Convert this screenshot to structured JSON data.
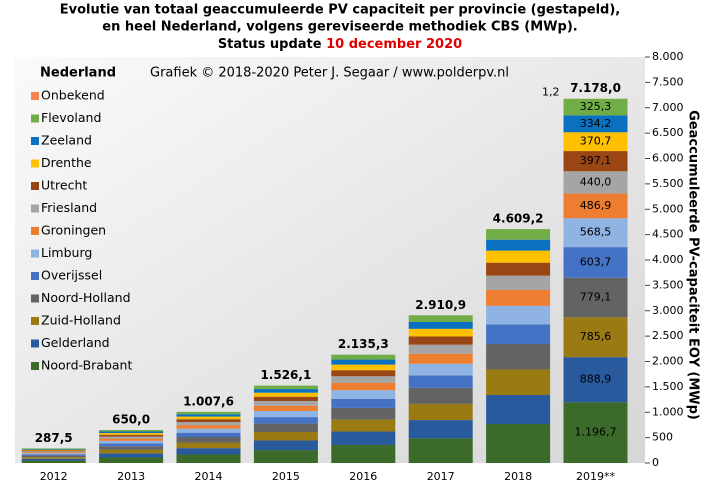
{
  "chart_data": {
    "type": "stacked-bar",
    "title": [
      "Evolutie van totaal geaccumuleerde PV capaciteit per provincie (gestapeld),",
      "en heel Nederland, volgens gereviseerde methodiek CBS (MWp)."
    ],
    "status": "Status update",
    "status_date": "10 december 2020",
    "subtitle": "Grafiek © 2018-2020 Peter J. Segaar / www.polderpv.nl",
    "legend_title": "Nederland",
    "y_label": "Geaccumuleerde PV-capaciteit EOY (MWp)",
    "categories": [
      "2012",
      "2013",
      "2014",
      "2015",
      "2016",
      "2017",
      "2018",
      "2019**"
    ],
    "ylim": [
      0,
      8000
    ],
    "yticks": [
      0,
      500,
      {
        "value": 1000,
        "label": "1.000"
      },
      {
        "value": 1500,
        "label": "1.500"
      },
      {
        "value": 2000,
        "label": "2.000"
      },
      {
        "value": 2500,
        "label": "2.500"
      },
      {
        "value": 3000,
        "label": "3.000"
      },
      {
        "value": 3500,
        "label": "3.500"
      },
      {
        "value": 4000,
        "label": "4.000"
      },
      {
        "value": 4500,
        "label": "4.500"
      },
      {
        "value": 5000,
        "label": "5.000"
      },
      {
        "value": 5500,
        "label": "5.500"
      },
      {
        "value": 6000,
        "label": "6.000"
      },
      {
        "value": 6500,
        "label": "6.500"
      },
      {
        "value": 7000,
        "label": "7.000"
      },
      {
        "value": 7500,
        "label": "7.500"
      },
      {
        "value": 8000,
        "label": "8.000"
      }
    ],
    "totals": [
      287.5,
      650.0,
      1007.6,
      1526.1,
      2135.3,
      2910.9,
      4609.2,
      7178.0
    ],
    "total_labels": [
      "287,5",
      "650,0",
      "1.007,6",
      "1.526,1",
      "2.135,3",
      "2.910,9",
      "4.609,2",
      "7.178,0"
    ],
    "series": [
      {
        "name": "Noord-Brabant",
        "color": "#3b6a2a",
        "values": [
          48.0,
          108.4,
          168.0,
          254.4,
          356.0,
          485.4,
          768.5,
          1196.7
        ],
        "value_labels": [
          null,
          null,
          null,
          null,
          null,
          null,
          null,
          "1.196,7"
        ]
      },
      {
        "name": "Gelderland",
        "color": "#2a5a9e",
        "values": [
          35.6,
          80.5,
          124.8,
          189.0,
          264.4,
          360.5,
          570.9,
          888.9
        ],
        "value_labels": [
          null,
          null,
          null,
          null,
          null,
          null,
          null,
          "888,9"
        ]
      },
      {
        "name": "Zuid-Holland",
        "color": "#9a7a12",
        "values": [
          31.5,
          71.2,
          110.3,
          167.0,
          233.7,
          318.6,
          504.5,
          785.6
        ],
        "value_labels": [
          null,
          null,
          null,
          null,
          null,
          null,
          null,
          "785,6"
        ]
      },
      {
        "name": "Noord-Holland",
        "color": "#636363",
        "values": [
          31.2,
          70.6,
          109.4,
          165.6,
          231.8,
          316.0,
          500.3,
          779.1
        ],
        "value_labels": [
          null,
          null,
          null,
          null,
          null,
          null,
          null,
          "779,1"
        ]
      },
      {
        "name": "Overijssel",
        "color": "#4472c4",
        "values": [
          24.2,
          54.7,
          84.8,
          128.3,
          179.6,
          244.9,
          387.7,
          603.7
        ],
        "value_labels": [
          null,
          null,
          null,
          null,
          null,
          null,
          null,
          "603,7"
        ]
      },
      {
        "name": "Limburg",
        "color": "#8fb3e2",
        "values": [
          22.8,
          51.5,
          79.8,
          120.9,
          169.1,
          230.6,
          365.1,
          568.5
        ],
        "value_labels": [
          null,
          null,
          null,
          null,
          null,
          null,
          null,
          "568,5"
        ]
      },
      {
        "name": "Groningen",
        "color": "#ed7d31",
        "values": [
          19.5,
          44.1,
          68.4,
          103.5,
          144.9,
          197.5,
          312.7,
          486.9
        ],
        "value_labels": [
          null,
          null,
          null,
          null,
          null,
          null,
          null,
          "486,9"
        ]
      },
      {
        "name": "Friesland",
        "color": "#a5a5a5",
        "values": [
          17.6,
          39.9,
          61.8,
          93.5,
          130.9,
          178.5,
          282.6,
          440.0
        ],
        "value_labels": [
          null,
          null,
          null,
          null,
          null,
          null,
          null,
          "440,0"
        ]
      },
      {
        "name": "Utrecht",
        "color": "#9a4514",
        "values": [
          15.9,
          36.0,
          55.8,
          84.4,
          118.1,
          161.1,
          255.0,
          397.1
        ],
        "value_labels": [
          null,
          null,
          null,
          null,
          null,
          null,
          null,
          "397,1"
        ]
      },
      {
        "name": "Drenthe",
        "color": "#ffc000",
        "values": [
          14.9,
          33.6,
          52.0,
          78.8,
          110.3,
          150.4,
          238.1,
          370.7
        ],
        "value_labels": [
          null,
          null,
          null,
          null,
          null,
          null,
          null,
          "370,7"
        ]
      },
      {
        "name": "Zeeland",
        "color": "#0a70c0",
        "values": [
          13.4,
          30.3,
          46.9,
          71.1,
          99.4,
          135.6,
          214.6,
          334.2
        ],
        "value_labels": [
          null,
          null,
          null,
          null,
          null,
          null,
          null,
          "334,2"
        ]
      },
      {
        "name": "Flevoland",
        "color": "#70ad47",
        "values": [
          13.0,
          29.5,
          45.7,
          69.2,
          96.8,
          131.8,
          208.9,
          325.3
        ],
        "value_labels": [
          null,
          null,
          null,
          null,
          null,
          null,
          null,
          "325,3"
        ]
      },
      {
        "name": "Onbekend",
        "color": "#f4844a",
        "values": [
          0,
          0,
          0,
          0.4,
          0.3,
          0,
          0.3,
          1.2
        ],
        "value_labels": [
          null,
          null,
          null,
          null,
          null,
          null,
          null,
          "1,2"
        ]
      }
    ]
  }
}
